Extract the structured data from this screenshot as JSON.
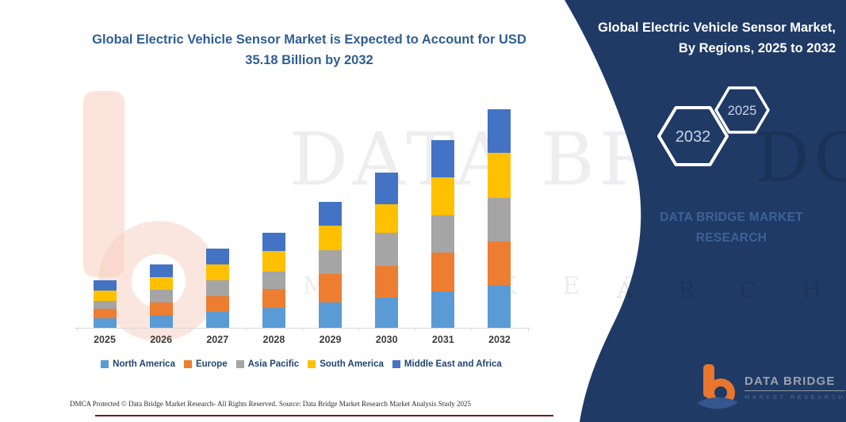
{
  "title": {
    "line1": "Global Electric Vehicle Sensor Market is Expected to Account for USD",
    "line2": "35.18 Billion by 2032"
  },
  "chart_data": {
    "type": "bar",
    "stacked": true,
    "title": "Global Electric Vehicle Sensor Market is Expected to Account for USD 35.18 Billion by 2032",
    "unit": "USD Billion",
    "categories": [
      "2025",
      "2026",
      "2027",
      "2028",
      "2029",
      "2030",
      "2031",
      "2032"
    ],
    "series": [
      {
        "name": "North America",
        "color": "#5B9BD5",
        "values": [
          1.56,
          2.05,
          2.56,
          3.15,
          4.12,
          4.84,
          5.83,
          6.88
        ]
      },
      {
        "name": "Europe",
        "color": "#ED7D31",
        "values": [
          1.48,
          2.02,
          2.54,
          3.1,
          4.55,
          5.1,
          6.25,
          7.01
        ]
      },
      {
        "name": "Asia Pacific",
        "color": "#A5A5A5",
        "values": [
          1.27,
          2.0,
          2.52,
          2.84,
          3.83,
          5.32,
          6.08,
          7.01
        ]
      },
      {
        "name": "South America",
        "color": "#FFC000",
        "values": [
          1.69,
          2.06,
          2.56,
          3.32,
          3.95,
          4.59,
          6.03,
          7.23
        ]
      },
      {
        "name": "Middle East and Africa",
        "color": "#4472C4",
        "values": [
          1.6,
          2.07,
          2.57,
          2.84,
          3.83,
          5.19,
          5.99,
          7.05
        ]
      }
    ],
    "totals": [
      7.6,
      10.2,
      12.75,
      15.25,
      20.28,
      25.04,
      30.18,
      35.18
    ],
    "ylim": [
      0,
      36
    ],
    "y_axis_visible": false,
    "grid": false,
    "legend_position": "bottom"
  },
  "panel": {
    "bg_color": "#203a66",
    "header_line1": "Global Electric Vehicle Sensor Market,",
    "header_line2": "By Regions, 2025 to 2032",
    "hex_large_year": "2032",
    "hex_small_year": "2025",
    "brand_watermark_line1": "DATA BRIDGE MARKET",
    "brand_watermark_line2": "RESEARCH"
  },
  "watermark": {
    "big_text": "DATA BRIDGE",
    "row_text": "M A R K E T   R E S E A R C H",
    "panel_big_text": "DGE",
    "panel_row_text": "A R C H"
  },
  "logo": {
    "name": "DATA BRIDGE",
    "tagline": "MARKET RESEARCH",
    "accent_orange": "#e8762c",
    "accent_blue": "#35558e"
  },
  "footer": {
    "left": "DMCA Protected © Data Bridge Market Research-  All Rights Reserved.",
    "right": "Source: Data Bridge Market Research  Market Analysis Study 2025"
  }
}
